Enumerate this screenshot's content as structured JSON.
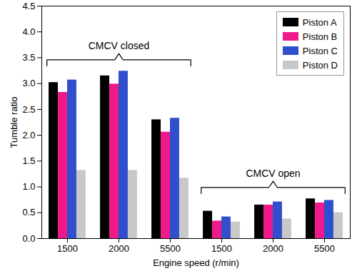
{
  "chart_data": {
    "type": "bar",
    "x_label": "Engine speed (r/min)",
    "y_label": "Tumble ratio",
    "categories": [
      "1500",
      "2000",
      "5500",
      "1500",
      "2000",
      "5500"
    ],
    "series": [
      {
        "name": "Piston A",
        "color": "#000000",
        "values": [
          3.02,
          3.15,
          2.3,
          0.53,
          0.65,
          0.77
        ]
      },
      {
        "name": "Piston B",
        "color": "#f0198a",
        "values": [
          2.83,
          2.99,
          2.06,
          0.34,
          0.65,
          0.69
        ]
      },
      {
        "name": "Piston C",
        "color": "#2f4fcc",
        "values": [
          3.07,
          3.24,
          2.33,
          0.42,
          0.71,
          0.74
        ]
      },
      {
        "name": "Piston D",
        "color": "#c8c8c8",
        "values": [
          1.32,
          1.32,
          1.17,
          0.32,
          0.38,
          0.5
        ]
      }
    ],
    "annotations": [
      {
        "text": "CMCV closed",
        "from": 0,
        "to": 2
      },
      {
        "text": "CMCV open",
        "from": 3,
        "to": 5
      }
    ],
    "ylim": [
      0,
      4.5
    ],
    "yticks": [
      {
        "value": 0,
        "label": "0.0"
      },
      {
        "value": 0.5,
        "label": "0.5"
      },
      {
        "value": 1,
        "label": "1.0"
      },
      {
        "value": 1.5,
        "label": "1.5"
      },
      {
        "value": 2,
        "label": "2.0"
      },
      {
        "value": 2.5,
        "label": "2.5"
      },
      {
        "value": 3,
        "label": "3.0"
      },
      {
        "value": 3.5,
        "label": "3.5"
      },
      {
        "value": 4,
        "label": "4.0"
      },
      {
        "value": 4.5,
        "label": "4.5"
      }
    ],
    "legend": "top-right",
    "grid": false
  }
}
